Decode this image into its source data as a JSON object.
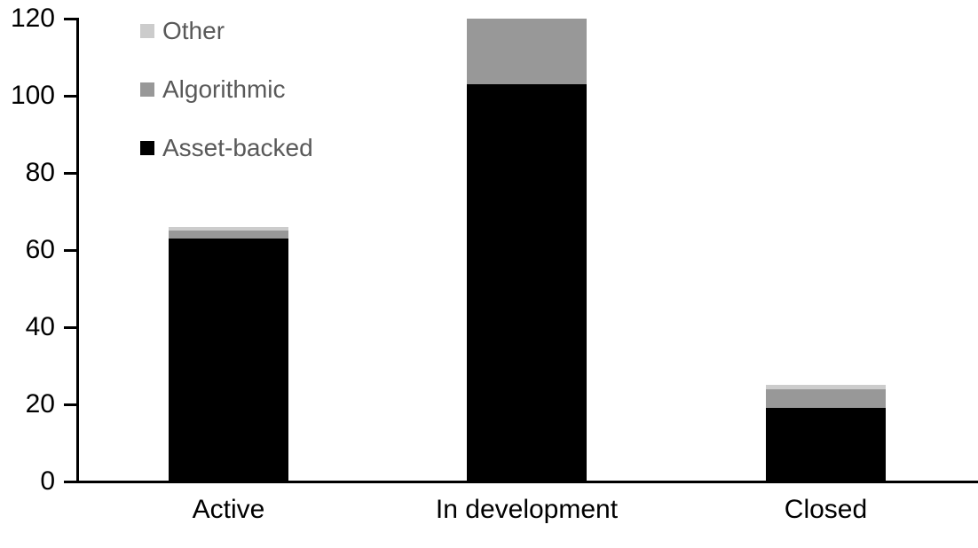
{
  "chart_data": {
    "type": "bar",
    "subtype": "stacked",
    "title": "",
    "categories": [
      "Active",
      "In development",
      "Closed"
    ],
    "series": [
      {
        "name": "Asset-backed",
        "color": "#000000",
        "values": [
          63,
          103,
          19
        ]
      },
      {
        "name": "Algorithmic",
        "color": "#989898",
        "values": [
          2,
          17,
          5
        ]
      },
      {
        "name": "Other",
        "color": "#cccccc",
        "values": [
          1,
          0,
          1
        ]
      }
    ],
    "totals": [
      66,
      120,
      25
    ],
    "y_axis": {
      "min": 0,
      "max": 120,
      "tick_step": 20,
      "ticks": [
        "0",
        "20",
        "40",
        "60",
        "80",
        "100",
        "120"
      ]
    },
    "x_axis": {
      "labels": [
        "Active",
        "In development",
        "Closed"
      ]
    },
    "legend": {
      "position": "top-left",
      "order": [
        "Other",
        "Algorithmic",
        "Asset-backed"
      ],
      "text_color": "#595959"
    },
    "grid": false,
    "background_color": "#ffffff",
    "axis_color": "#000000"
  }
}
